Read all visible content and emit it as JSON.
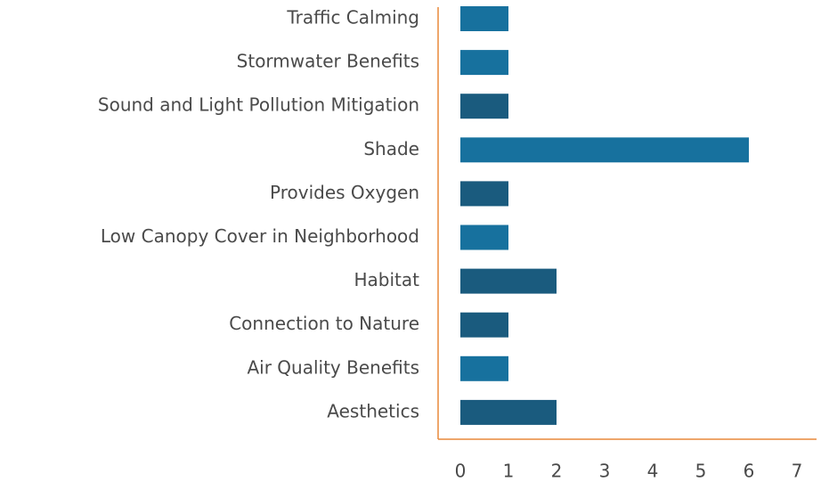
{
  "chart_data": {
    "type": "barh",
    "categories": [
      "Traffic Calming",
      "Stormwater Benefits",
      "Sound and Light Pollution Mitigation",
      "Shade",
      "Provides Oxygen",
      "Low Canopy Cover in Neighborhood",
      "Habitat",
      "Connection to Nature",
      "Air Quality Benefits",
      "Aesthetics"
    ],
    "values": [
      1,
      1,
      1,
      6,
      1,
      1,
      2,
      1,
      1,
      2
    ],
    "colors": [
      "#17719e",
      "#17719e",
      "#1a5b7e",
      "#17719e",
      "#1a5b7e",
      "#17719e",
      "#1a5b7e",
      "#1a5b7e",
      "#17719e",
      "#1a5b7e"
    ],
    "xlim": [
      0,
      7
    ],
    "xticks": [
      0,
      1,
      2,
      3,
      4,
      5,
      6,
      7
    ],
    "axis_color": "#e8883a"
  }
}
